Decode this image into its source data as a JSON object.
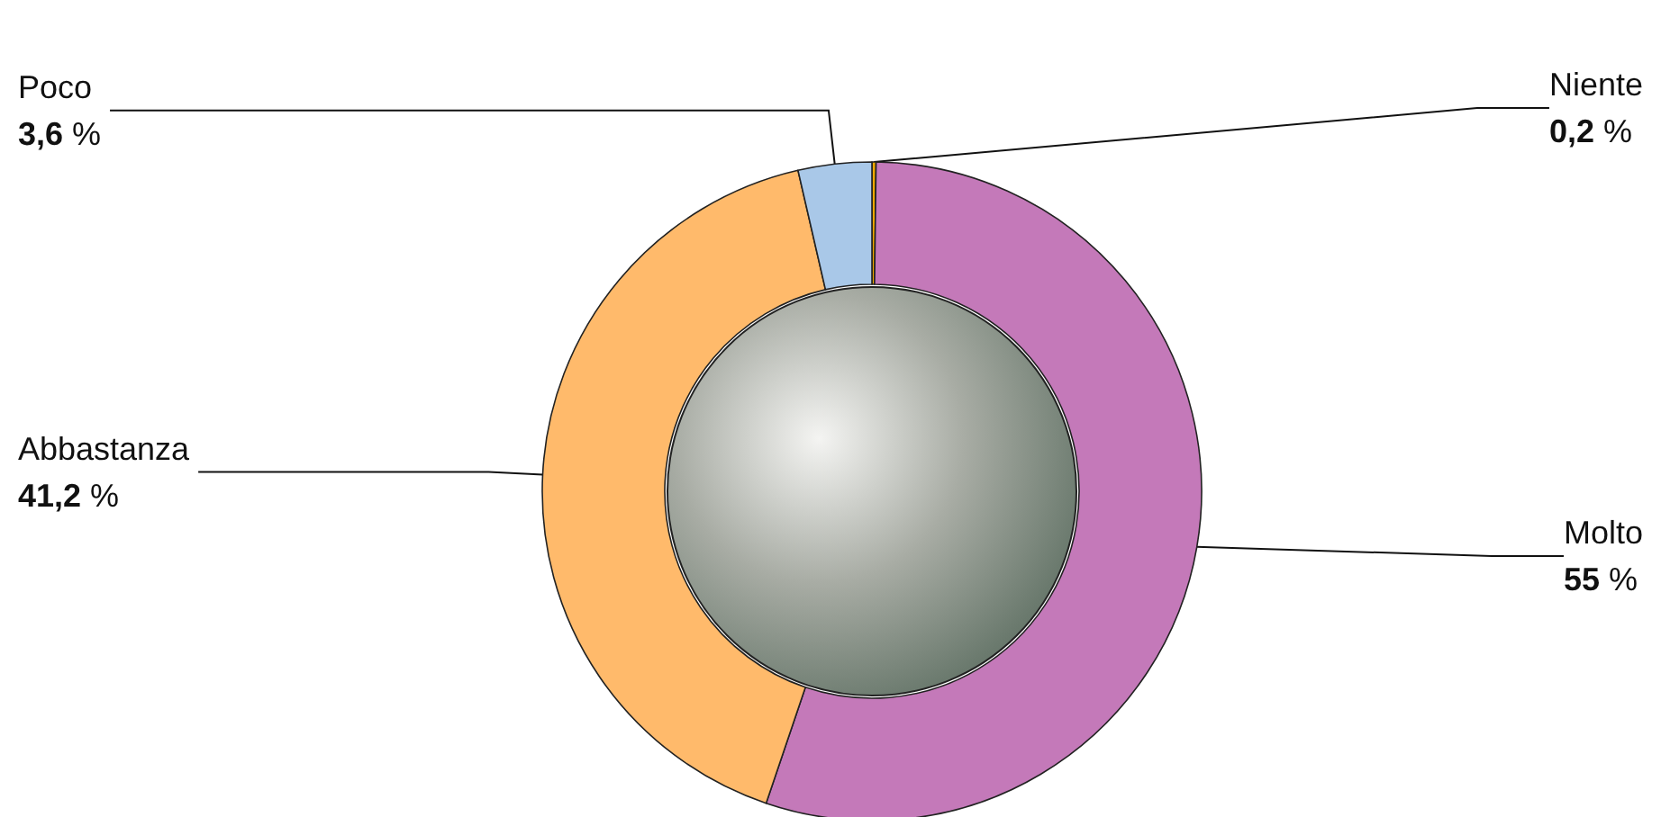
{
  "chart_data": {
    "type": "donut",
    "categories": [
      "Niente",
      "Molto",
      "Abbastanza",
      "Poco"
    ],
    "values": [
      0.2,
      55,
      41.2,
      3.6
    ],
    "value_labels": [
      "0,2 %",
      "55 %",
      "41,2 %",
      "3,6 %"
    ],
    "colors": [
      "#f0a800",
      "#c479b9",
      "#ffba6b",
      "#a9c8e8"
    ],
    "legend": false
  }
}
